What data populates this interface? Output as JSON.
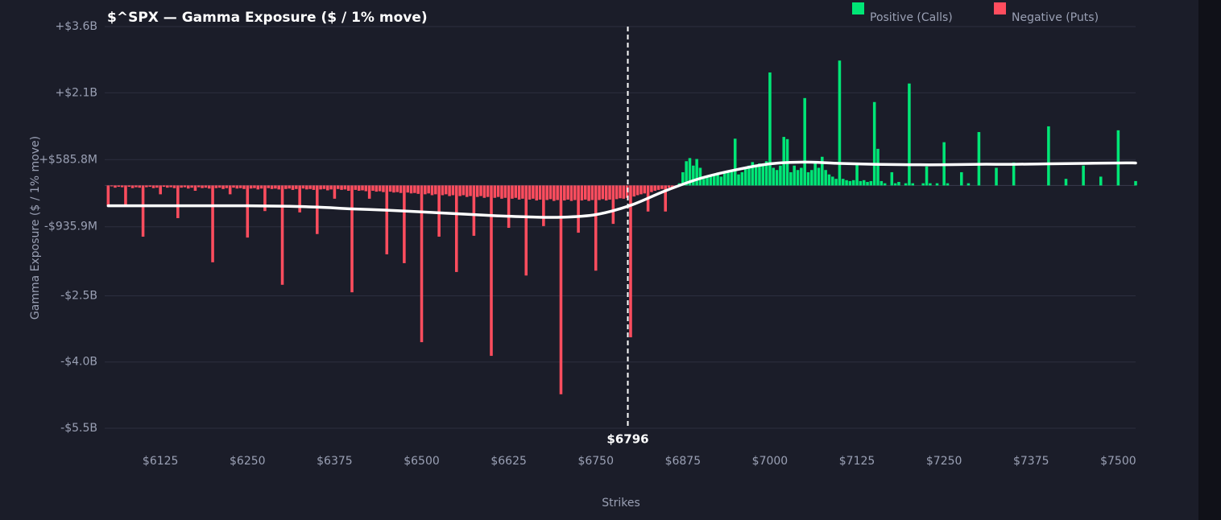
{
  "chart_data": {
    "type": "bar",
    "title": "$^SPX — Gamma Exposure ($ / 1% move)",
    "y_label": "Gamma Exposure ($ / 1% move)",
    "x_label": "Strikes",
    "legend": [
      {
        "name": "Positive (Calls)",
        "color": "#00e676"
      },
      {
        "name": "Negative (Puts)",
        "color": "#ff4d5e"
      }
    ],
    "grid": true,
    "xlim": [
      6045,
      7525
    ],
    "ylim": [
      -5.5,
      3.6
    ],
    "yticks": [
      {
        "value": 3.6,
        "label": "+$3.6B"
      },
      {
        "value": 2.1,
        "label": "+$2.1B"
      },
      {
        "value": 0.5858,
        "label": "+$585.8M"
      },
      {
        "value": -0.9359,
        "label": "-$935.9M"
      },
      {
        "value": -2.5,
        "label": "-$2.5B"
      },
      {
        "value": -4.0,
        "label": "-$4.0B"
      },
      {
        "value": -5.5,
        "label": "-$5.5B"
      }
    ],
    "xticks": [
      {
        "value": 6125,
        "label": "$6125"
      },
      {
        "value": 6250,
        "label": "$6250"
      },
      {
        "value": 6375,
        "label": "$6375"
      },
      {
        "value": 6500,
        "label": "$6500"
      },
      {
        "value": 6625,
        "label": "$6625"
      },
      {
        "value": 6750,
        "label": "$6750"
      },
      {
        "value": 6875,
        "label": "$6875"
      },
      {
        "value": 7000,
        "label": "$7000"
      },
      {
        "value": 7125,
        "label": "$7125"
      },
      {
        "value": 7250,
        "label": "$7250"
      },
      {
        "value": 7375,
        "label": "$7375"
      },
      {
        "value": 7500,
        "label": "$7500"
      }
    ],
    "marker": {
      "x": 6796,
      "label": "$6796"
    },
    "x": [
      6050,
      6055,
      6060,
      6065,
      6070,
      6075,
      6080,
      6085,
      6090,
      6095,
      6100,
      6105,
      6110,
      6115,
      6120,
      6125,
      6130,
      6135,
      6140,
      6145,
      6150,
      6155,
      6160,
      6165,
      6170,
      6175,
      6180,
      6185,
      6190,
      6195,
      6200,
      6205,
      6210,
      6215,
      6220,
      6225,
      6230,
      6235,
      6240,
      6245,
      6250,
      6255,
      6260,
      6265,
      6270,
      6275,
      6280,
      6285,
      6290,
      6295,
      6300,
      6305,
      6310,
      6315,
      6320,
      6325,
      6330,
      6335,
      6340,
      6345,
      6350,
      6355,
      6360,
      6365,
      6370,
      6375,
      6380,
      6385,
      6390,
      6395,
      6400,
      6405,
      6410,
      6415,
      6420,
      6425,
      6430,
      6435,
      6440,
      6445,
      6450,
      6455,
      6460,
      6465,
      6470,
      6475,
      6480,
      6485,
      6490,
      6495,
      6500,
      6505,
      6510,
      6515,
      6520,
      6525,
      6530,
      6535,
      6540,
      6545,
      6550,
      6555,
      6560,
      6565,
      6570,
      6575,
      6580,
      6585,
      6590,
      6595,
      6600,
      6605,
      6610,
      6615,
      6620,
      6625,
      6630,
      6635,
      6640,
      6645,
      6650,
      6655,
      6660,
      6665,
      6670,
      6675,
      6680,
      6685,
      6690,
      6695,
      6700,
      6705,
      6710,
      6715,
      6720,
      6725,
      6730,
      6735,
      6740,
      6745,
      6750,
      6755,
      6760,
      6765,
      6770,
      6775,
      6780,
      6785,
      6790,
      6795,
      6800,
      6805,
      6810,
      6815,
      6820,
      6825,
      6830,
      6835,
      6840,
      6845,
      6850,
      6855,
      6860,
      6865,
      6870,
      6875,
      6880,
      6885,
      6890,
      6895,
      6900,
      6905,
      6910,
      6915,
      6920,
      6925,
      6930,
      6935,
      6940,
      6945,
      6950,
      6955,
      6960,
      6965,
      6970,
      6975,
      6980,
      6985,
      6990,
      6995,
      7000,
      7005,
      7010,
      7015,
      7020,
      7025,
      7030,
      7035,
      7040,
      7045,
      7050,
      7055,
      7060,
      7065,
      7070,
      7075,
      7080,
      7085,
      7090,
      7095,
      7100,
      7105,
      7110,
      7115,
      7120,
      7125,
      7130,
      7135,
      7140,
      7145,
      7150,
      7155,
      7160,
      7165,
      7170,
      7175,
      7180,
      7185,
      7190,
      7195,
      7200,
      7205,
      7210,
      7215,
      7220,
      7225,
      7230,
      7235,
      7240,
      7245,
      7250,
      7255,
      7260,
      7265,
      7270,
      7275,
      7280,
      7285,
      7290,
      7295,
      7300,
      7305,
      7310,
      7315,
      7320,
      7325,
      7330,
      7335,
      7340,
      7345,
      7350,
      7355,
      7360,
      7365,
      7370,
      7375,
      7380,
      7385,
      7390,
      7395,
      7400,
      7405,
      7410,
      7415,
      7420,
      7425,
      7430,
      7435,
      7440,
      7445,
      7450,
      7455,
      7460,
      7465,
      7470,
      7475,
      7480,
      7485,
      7490,
      7495,
      7500,
      7505,
      7510,
      7515,
      7520,
      7525
    ],
    "values": [
      -0.45,
      -0.02,
      -0.05,
      -0.03,
      -0.04,
      -0.45,
      -0.03,
      -0.06,
      -0.04,
      -0.05,
      -1.16,
      -0.04,
      -0.03,
      -0.06,
      -0.05,
      -0.2,
      -0.03,
      -0.05,
      -0.04,
      -0.06,
      -0.74,
      -0.05,
      -0.04,
      -0.07,
      -0.05,
      -0.12,
      -0.04,
      -0.06,
      -0.05,
      -0.07,
      -1.74,
      -0.06,
      -0.05,
      -0.08,
      -0.06,
      -0.2,
      -0.05,
      -0.07,
      -0.06,
      -0.08,
      -1.18,
      -0.07,
      -0.06,
      -0.09,
      -0.07,
      -0.58,
      -0.06,
      -0.08,
      -0.07,
      -0.09,
      -2.25,
      -0.08,
      -0.07,
      -0.1,
      -0.08,
      -0.61,
      -0.07,
      -0.09,
      -0.08,
      -0.1,
      -1.1,
      -0.09,
      -0.08,
      -0.11,
      -0.09,
      -0.3,
      -0.08,
      -0.1,
      -0.09,
      -0.12,
      -2.42,
      -0.1,
      -0.12,
      -0.11,
      -0.13,
      -0.3,
      -0.12,
      -0.14,
      -0.13,
      -0.15,
      -1.56,
      -0.14,
      -0.16,
      -0.15,
      -0.17,
      -1.76,
      -0.16,
      -0.18,
      -0.17,
      -0.19,
      -3.55,
      -0.2,
      -0.18,
      -0.22,
      -0.2,
      -1.16,
      -0.22,
      -0.2,
      -0.24,
      -0.22,
      -1.96,
      -0.24,
      -0.22,
      -0.26,
      -0.24,
      -1.14,
      -0.26,
      -0.24,
      -0.28,
      -0.26,
      -3.86,
      -0.28,
      -0.26,
      -0.3,
      -0.28,
      -0.96,
      -0.3,
      -0.28,
      -0.32,
      -0.3,
      -2.04,
      -0.32,
      -0.3,
      -0.34,
      -0.32,
      -0.92,
      -0.33,
      -0.31,
      -0.35,
      -0.33,
      -4.73,
      -0.34,
      -0.32,
      -0.35,
      -0.33,
      -1.07,
      -0.34,
      -0.32,
      -0.35,
      -0.33,
      -1.93,
      -0.33,
      -0.31,
      -0.34,
      -0.32,
      -0.87,
      -0.31,
      -0.29,
      -0.3,
      -0.28,
      -3.44,
      -0.25,
      -0.22,
      -0.2,
      -0.18,
      -0.59,
      -0.15,
      -0.12,
      -0.1,
      -0.08,
      -0.59,
      -0.05,
      -0.04,
      -0.02,
      0.05,
      0.3,
      0.55,
      0.62,
      0.45,
      0.6,
      0.4,
      0.15,
      0.18,
      0.2,
      0.22,
      0.25,
      0.2,
      0.28,
      0.3,
      0.35,
      1.06,
      0.25,
      0.3,
      0.4,
      0.45,
      0.53,
      0.45,
      0.5,
      0.48,
      0.55,
      2.56,
      0.4,
      0.35,
      0.45,
      1.1,
      1.05,
      0.3,
      0.45,
      0.35,
      0.4,
      1.98,
      0.3,
      0.35,
      0.5,
      0.4,
      0.65,
      0.35,
      0.25,
      0.2,
      0.15,
      2.83,
      0.15,
      0.12,
      0.1,
      0.12,
      0.5,
      0.1,
      0.12,
      0.08,
      0.1,
      1.89,
      0.83,
      0.1,
      0.05,
      0,
      0.3,
      0.05,
      0.08,
      0,
      0.05,
      2.31,
      0.05,
      0,
      0,
      0.05,
      0.43,
      0.05,
      0,
      0.05,
      0,
      0.98,
      0.05,
      0,
      0,
      0,
      0.3,
      0,
      0.05,
      0,
      0,
      1.21,
      0,
      0,
      0,
      0,
      0.4,
      0,
      0,
      0,
      0,
      0.52,
      0,
      0,
      0,
      0,
      0,
      0,
      0,
      0,
      0,
      1.34,
      0,
      0,
      0,
      0,
      0.15,
      0,
      0,
      0,
      0,
      0.45,
      0,
      0,
      0,
      0,
      0.2,
      0,
      0,
      0,
      0,
      1.25,
      0,
      0,
      0,
      0,
      0.1
    ],
    "line": {
      "color": "#ffffff",
      "x": [
        6050,
        6100,
        6150,
        6200,
        6250,
        6300,
        6350,
        6400,
        6450,
        6500,
        6550,
        6600,
        6650,
        6700,
        6750,
        6800,
        6850,
        6900,
        6950,
        7000,
        7050,
        7100,
        7150,
        7200,
        7250,
        7300,
        7350,
        7400,
        7450,
        7500,
        7525
      ],
      "values": [
        -0.46,
        -0.46,
        -0.46,
        -0.46,
        -0.46,
        -0.47,
        -0.49,
        -0.53,
        -0.56,
        -0.6,
        -0.64,
        -0.68,
        -0.71,
        -0.72,
        -0.66,
        -0.45,
        -0.12,
        0.16,
        0.35,
        0.49,
        0.53,
        0.5,
        0.48,
        0.47,
        0.47,
        0.48,
        0.48,
        0.49,
        0.5,
        0.51,
        0.51
      ]
    }
  }
}
